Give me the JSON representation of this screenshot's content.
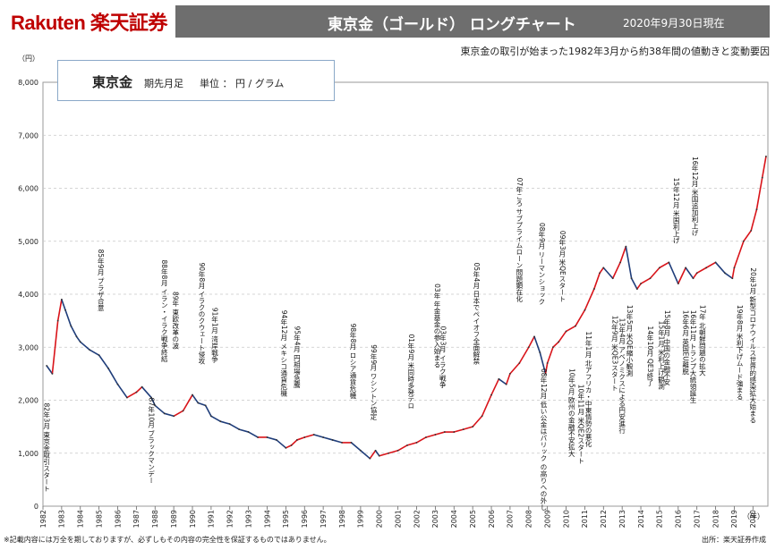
{
  "brand": "Rakuten 楽天証券",
  "header": {
    "title": "東京金（ゴールド） ロングチャート",
    "date": "2020年9月30日現在"
  },
  "subtitle": "東京金の取引が始まった1982年3月から約38年間の値動きと変動要因",
  "legend": {
    "name": "東京金",
    "series": "期先月足",
    "unit": "単位 ： 円 / グラム"
  },
  "footer": {
    "disclaimer": "※記載内容には万全を期しておりますが、必ずしもその内容の完全性を保証するものではありません。",
    "source": "出所：楽天証券作成"
  },
  "chart_data": {
    "type": "line",
    "title": "東京金（ゴールド） ロングチャート",
    "yunit": "（円）",
    "xunit": "（年）",
    "ylim": [
      0,
      8000
    ],
    "yticks": [
      "0",
      "1,000",
      "2,000",
      "3,000",
      "4,000",
      "5,000",
      "6,000",
      "7,000",
      "8,000"
    ],
    "xticks": [
      "1982",
      "1983",
      "1984",
      "1985",
      "1986",
      "1987",
      "1988",
      "1989",
      "1990",
      "1991",
      "1992",
      "1993",
      "1994",
      "1995",
      "1996",
      "1997",
      "1998",
      "1999",
      "2000",
      "2001",
      "2002",
      "2003",
      "2004",
      "2005",
      "2006",
      "2007",
      "2008",
      "2009",
      "2010",
      "2011",
      "2012",
      "2013",
      "2014",
      "2015",
      "2016",
      "2017",
      "2018",
      "2019",
      "2020"
    ],
    "xlim": [
      1982,
      2020.8
    ],
    "grid": true,
    "series": [
      {
        "color_up": "#d9141a",
        "color_down": "#1f3d7a",
        "x": [
          1982.2,
          1982.5,
          1982.8,
          1983.0,
          1983.2,
          1983.5,
          1983.8,
          1984.0,
          1984.5,
          1985.0,
          1985.5,
          1986.0,
          1986.5,
          1987.0,
          1987.3,
          1987.8,
          1988.0,
          1988.5,
          1989.0,
          1989.5,
          1990.0,
          1990.3,
          1990.7,
          1991.0,
          1991.5,
          1992.0,
          1992.5,
          1993.0,
          1993.5,
          1994.0,
          1994.5,
          1995.0,
          1995.3,
          1995.6,
          1996.0,
          1996.5,
          1997.0,
          1997.5,
          1998.0,
          1998.5,
          1999.0,
          1999.5,
          1999.8,
          2000.0,
          2000.5,
          2001.0,
          2001.5,
          2002.0,
          2002.5,
          2003.0,
          2003.5,
          2004.0,
          2004.5,
          2005.0,
          2005.5,
          2006.0,
          2006.4,
          2006.8,
          2007.0,
          2007.5,
          2008.0,
          2008.3,
          2008.6,
          2008.9,
          2009.0,
          2009.3,
          2009.6,
          2010.0,
          2010.5,
          2011.0,
          2011.5,
          2011.8,
          2012.0,
          2012.5,
          2012.9,
          2013.2,
          2013.5,
          2013.8,
          2014.0,
          2014.5,
          2015.0,
          2015.5,
          2016.0,
          2016.4,
          2016.8,
          2017.0,
          2017.5,
          2018.0,
          2018.5,
          2018.9,
          2019.0,
          2019.5,
          2019.9,
          2020.2,
          2020.5,
          2020.7
        ],
        "y": [
          2650,
          2500,
          3500,
          3900,
          3700,
          3400,
          3200,
          3100,
          2950,
          2850,
          2600,
          2300,
          2050,
          2150,
          2250,
          2050,
          1900,
          1750,
          1700,
          1800,
          2100,
          1950,
          1900,
          1700,
          1600,
          1550,
          1450,
          1400,
          1300,
          1300,
          1250,
          1100,
          1150,
          1250,
          1300,
          1350,
          1300,
          1250,
          1200,
          1200,
          1050,
          900,
          1050,
          950,
          1000,
          1050,
          1150,
          1200,
          1300,
          1350,
          1400,
          1400,
          1450,
          1500,
          1700,
          2100,
          2400,
          2300,
          2500,
          2700,
          3000,
          3200,
          2900,
          2500,
          2700,
          3000,
          3100,
          3300,
          3400,
          3700,
          4100,
          4400,
          4500,
          4300,
          4600,
          4900,
          4300,
          4100,
          4200,
          4300,
          4500,
          4600,
          4200,
          4500,
          4300,
          4400,
          4500,
          4600,
          4400,
          4300,
          4500,
          5000,
          5200,
          5600,
          6200,
          6600
        ]
      }
    ],
    "annotations": [
      {
        "x": 1982.2,
        "y": 1950,
        "text": "82年3月 東京金取引スタート"
      },
      {
        "x": 1985.1,
        "y": 4850,
        "text": "85年9月 プラザ合意"
      },
      {
        "x": 1987.8,
        "y": 2050,
        "text": "87年10月 ブラックマンデー"
      },
      {
        "x": 1988.5,
        "y": 4650,
        "text": "88年8月 イラン・イラク戦争終結"
      },
      {
        "x": 1989.1,
        "y": 4050,
        "text": "89年 東欧改革の波"
      },
      {
        "x": 1990.5,
        "y": 4600,
        "text": "90年8月 イラクのクウェート侵攻"
      },
      {
        "x": 1991.2,
        "y": 3750,
        "text": "91年1月 湾岸戦争"
      },
      {
        "x": 1994.9,
        "y": 3700,
        "text": "94年12月 メキシコ通貨危機"
      },
      {
        "x": 1995.6,
        "y": 3400,
        "text": "95年4月 円相場急騰"
      },
      {
        "x": 1998.6,
        "y": 3450,
        "text": "98年8月 ロシア通貨危機"
      },
      {
        "x": 1999.7,
        "y": 3050,
        "text": "99年9月 ワシントン協定"
      },
      {
        "x": 2001.7,
        "y": 3250,
        "text": "01年9月 米同時多発テロ"
      },
      {
        "x": 2003.1,
        "y": 4200,
        "text": "03年 年金基金の参入始まる"
      },
      {
        "x": 2003.4,
        "y": 3400,
        "text": "03年3月 イラク戦争"
      },
      {
        "x": 2005.2,
        "y": 4600,
        "text": "05年4月 日本でペイオフ全面解禁"
      },
      {
        "x": 2007.5,
        "y": 6200,
        "text": "07年ころ サブプライムローン問題顕在化"
      },
      {
        "x": 2008.7,
        "y": 5350,
        "text": "08年9月 リーマンショック"
      },
      {
        "x": 2008.8,
        "y": 2600,
        "text": "08年12月 低い公金はパリック の高りへの外し"
      },
      {
        "x": 2009.8,
        "y": 5200,
        "text": "09年3月 米QEスタート"
      },
      {
        "x": 2010.3,
        "y": 2600,
        "text": "10年5月 欧州の金融不安拡大"
      },
      {
        "x": 2010.8,
        "y": 2300,
        "text": "10年11月 米QE2スタート"
      },
      {
        "x": 2011.2,
        "y": 3300,
        "text": "11年1月 北アフリカ・中東情勢の悪化"
      },
      {
        "x": 2012.6,
        "y": 3600,
        "text": "12年9月 米QE3スタート"
      },
      {
        "x": 2013.0,
        "y": 3550,
        "text": "13年4月 アベノミクスによる円安進行"
      },
      {
        "x": 2013.4,
        "y": 3800,
        "text": "13年5月 米QE縮小観測"
      },
      {
        "x": 2014.5,
        "y": 3400,
        "text": "14年10月 QE3終了"
      },
      {
        "x": 2015.1,
        "y": 3500,
        "text": "15年1月 米利上げ観測"
      },
      {
        "x": 2015.4,
        "y": 3700,
        "text": "15年8月 中国の金融不安"
      },
      {
        "x": 2015.9,
        "y": 6200,
        "text": "15年12月 米国利上げ"
      },
      {
        "x": 2016.4,
        "y": 3700,
        "text": "16年6月 英国EU離脱"
      },
      {
        "x": 2016.8,
        "y": 3700,
        "text": "16年11月 トランプ大統領誕生"
      },
      {
        "x": 2016.9,
        "y": 6600,
        "text": "16年12月 米国追加利上げ"
      },
      {
        "x": 2017.3,
        "y": 3800,
        "text": "17年 北朝鮮問題の拡大"
      },
      {
        "x": 2019.3,
        "y": 3800,
        "text": "19年8月 米利下げムード強まる"
      },
      {
        "x": 2020.0,
        "y": 4500,
        "text": "20年3月 新型コロナウイルス世界的感染拡大始まる"
      }
    ]
  }
}
